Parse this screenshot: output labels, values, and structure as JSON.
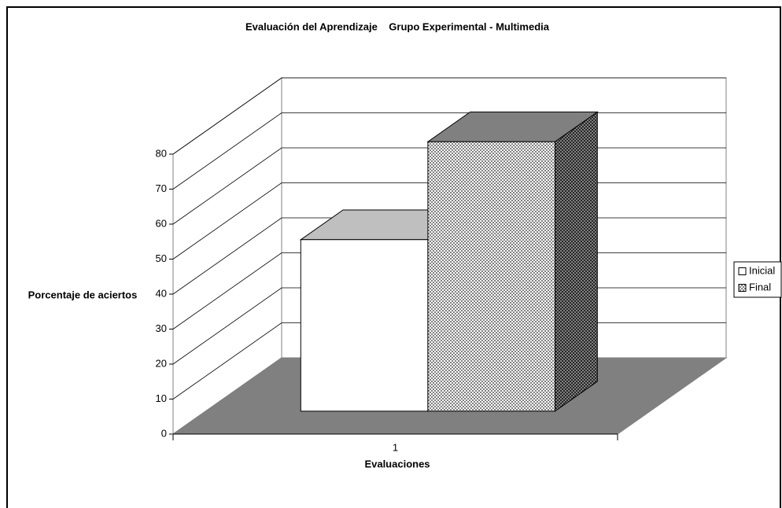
{
  "chart_data": {
    "type": "bar3d",
    "title": "Evaluación del Aprendizaje    Grupo Experimental - Multimedia",
    "y_label": "Porcentaje de aciertos",
    "x_label": "Evaluaciones",
    "categories": [
      "1"
    ],
    "series": [
      {
        "name": "Inicial",
        "color": "#ffffff",
        "values": [
          49
        ]
      },
      {
        "name": "Final",
        "color": "#808080",
        "values": [
          77
        ]
      }
    ],
    "ylim": [
      0,
      80
    ],
    "yticks": [
      0,
      10,
      20,
      30,
      40,
      50,
      60,
      70,
      80
    ],
    "grid": true,
    "legend": "right"
  }
}
